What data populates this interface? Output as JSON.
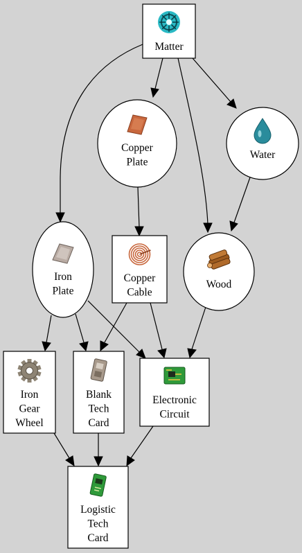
{
  "nodes": {
    "matter": {
      "lines": [
        "Matter"
      ],
      "icon": "matter-icon",
      "color": "#2ab9c4"
    },
    "copper_plate": {
      "lines": [
        "Copper",
        "Plate"
      ],
      "icon": "copper-plate-icon",
      "color": "#c8673d"
    },
    "water": {
      "lines": [
        "Water"
      ],
      "icon": "water-drop-icon",
      "color": "#2a8c9c"
    },
    "iron_plate": {
      "lines": [
        "Iron",
        "Plate"
      ],
      "icon": "iron-plate-icon",
      "color": "#b9aba3"
    },
    "copper_cable": {
      "lines": [
        "Copper",
        "Cable"
      ],
      "icon": "copper-cable-icon",
      "color": "#c8673d"
    },
    "wood": {
      "lines": [
        "Wood"
      ],
      "icon": "wood-icon",
      "color": "#9c5a1e"
    },
    "iron_gear_wheel": {
      "lines": [
        "Iron",
        "Gear",
        "Wheel"
      ],
      "icon": "gear-icon",
      "color": "#8e8474"
    },
    "blank_tech_card": {
      "lines": [
        "Blank",
        "Tech",
        "Card"
      ],
      "icon": "blank-tech-card-icon",
      "color": "#a89a8c"
    },
    "electronic_circuit": {
      "lines": [
        "Electronic",
        "Circuit"
      ],
      "icon": "circuit-board-icon",
      "color": "#2f9a3a"
    },
    "logistic_tech_card": {
      "lines": [
        "Logistic",
        "Tech",
        "Card"
      ],
      "icon": "logistic-tech-card-icon",
      "color": "#2f9a3a"
    }
  },
  "edges": [
    [
      "matter",
      "iron_plate"
    ],
    [
      "matter",
      "copper_plate"
    ],
    [
      "matter",
      "water"
    ],
    [
      "matter",
      "wood"
    ],
    [
      "copper_plate",
      "copper_cable"
    ],
    [
      "water",
      "wood"
    ],
    [
      "iron_plate",
      "iron_gear_wheel"
    ],
    [
      "iron_plate",
      "blank_tech_card"
    ],
    [
      "iron_plate",
      "electronic_circuit"
    ],
    [
      "copper_cable",
      "blank_tech_card"
    ],
    [
      "copper_cable",
      "electronic_circuit"
    ],
    [
      "wood",
      "electronic_circuit"
    ],
    [
      "iron_gear_wheel",
      "logistic_tech_card"
    ],
    [
      "blank_tech_card",
      "logistic_tech_card"
    ],
    [
      "electronic_circuit",
      "logistic_tech_card"
    ]
  ]
}
